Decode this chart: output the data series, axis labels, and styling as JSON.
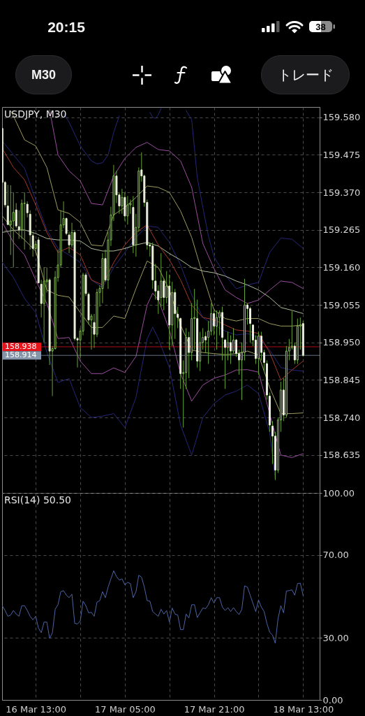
{
  "chart_data": [
    {
      "type": "other",
      "annotations": [
        "20:15",
        "38",
        "M30",
        "トレード"
      ]
    },
    {
      "type": "candlestick",
      "title": "USDJPY, M30",
      "x": [
        "--03-16T07:00",
        "--03-16T07:30",
        "--03-16T08:00",
        "--03-16T08:30",
        "--03-16T09:00",
        "--03-16T09:30",
        "--03-16T10:00",
        "--03-16T10:30",
        "--03-16T11:00",
        "--03-16T11:30",
        "--03-16T12:00",
        "--03-16T12:30",
        "--03-16T13:00",
        "--03-16T13:30",
        "--03-16T14:00",
        "--03-16T14:30",
        "--03-16T15:00",
        "--03-16T15:30",
        "--03-16T16:00",
        "--03-16T16:30",
        "--03-16T17:00",
        "--03-16T17:30",
        "--03-16T18:00",
        "--03-16T18:30",
        "--03-16T19:00",
        "--03-16T19:30",
        "--03-16T20:00",
        "--03-16T20:30",
        "--03-16T21:00",
        "--03-16T21:30",
        "--03-16T22:00",
        "--03-16T22:30",
        "--03-16T23:00",
        "--03-16T23:30",
        "--03-17T00:00",
        "--03-17T00:30",
        "--03-17T01:00",
        "--03-17T01:30",
        "--03-17T02:00",
        "--03-17T02:30",
        "--03-17T03:00",
        "--03-17T03:30",
        "--03-17T04:00",
        "--03-17T04:30",
        "--03-17T05:00",
        "--03-17T05:30",
        "--03-17T06:00",
        "--03-17T06:30",
        "--03-17T07:00",
        "--03-17T07:30",
        "--03-17T08:00",
        "--03-17T08:30",
        "--03-17T09:00",
        "--03-17T09:30",
        "--03-17T10:00",
        "--03-17T10:30",
        "--03-17T11:00",
        "--03-17T11:30",
        "--03-17T12:00",
        "--03-17T12:30",
        "--03-17T13:00",
        "--03-17T13:30",
        "--03-17T14:00",
        "--03-17T14:30",
        "--03-17T15:00",
        "--03-17T15:30",
        "--03-17T16:00",
        "--03-17T16:30",
        "--03-17T17:00",
        "--03-17T17:30",
        "--03-17T18:00",
        "--03-17T18:30",
        "--03-17T19:00",
        "--03-17T19:30",
        "--03-17T20:00",
        "--03-17T20:30",
        "--03-17T21:00",
        "--03-17T21:30",
        "--03-17T22:00",
        "--03-17T22:30",
        "--03-17T23:00",
        "--03-17T23:30",
        "--03-18T00:00",
        "--03-18T00:30",
        "--03-18T01:00",
        "--03-18T01:30",
        "--03-18T02:00",
        "--03-18T02:30",
        "--03-18T03:00",
        "--03-18T03:30",
        "--03-18T04:00",
        "--03-18T04:30",
        "--03-18T05:00",
        "--03-18T05:30",
        "--03-18T06:00",
        "--03-18T06:30",
        "--03-18T07:00",
        "--03-18T07:30",
        "--03-18T08:00",
        "--03-18T08:30",
        "--03-18T09:00",
        "--03-18T09:30",
        "--03-18T10:00",
        "--03-18T10:30",
        "--03-18T11:00",
        "--03-18T11:30",
        "--03-18T12:00",
        "--03-18T12:30",
        "--03-18T13:00"
      ],
      "ohlc": [
        [
          159.549,
          159.552,
          159.394,
          159.398
        ],
        [
          159.398,
          159.402,
          159.328,
          159.335
        ],
        [
          159.332,
          159.391,
          159.279,
          159.28
        ],
        [
          159.279,
          159.39,
          159.195,
          159.29
        ],
        [
          159.29,
          159.37,
          159.16,
          159.314
        ],
        [
          159.321,
          159.34,
          159.27,
          159.276
        ],
        [
          159.274,
          159.32,
          159.24,
          159.265
        ],
        [
          159.266,
          159.35,
          159.24,
          159.339
        ],
        [
          159.339,
          159.37,
          159.21,
          159.34
        ],
        [
          159.337,
          159.345,
          159.3,
          159.313
        ],
        [
          159.309,
          159.32,
          159.21,
          159.251
        ],
        [
          159.249,
          159.26,
          159.19,
          159.213
        ],
        [
          159.213,
          159.235,
          159.2,
          159.225
        ],
        [
          159.237,
          159.245,
          159.115,
          159.117
        ],
        [
          159.113,
          159.125,
          159.02,
          159.059
        ],
        [
          159.059,
          159.16,
          158.95,
          159.122
        ],
        [
          159.12,
          159.16,
          159.09,
          159.125
        ],
        [
          159.125,
          159.13,
          158.887,
          158.926
        ],
        [
          158.926,
          158.94,
          158.8,
          158.933
        ],
        [
          158.933,
          159.15,
          158.93,
          159.132
        ],
        [
          159.132,
          159.21,
          159.12,
          159.167
        ],
        [
          159.167,
          159.32,
          159.16,
          159.279
        ],
        [
          159.279,
          159.345,
          159.27,
          159.297
        ],
        [
          159.297,
          159.3,
          159.25,
          159.255
        ],
        [
          159.251,
          159.26,
          159.2,
          159.223
        ],
        [
          159.223,
          159.285,
          159.215,
          159.258
        ],
        [
          159.258,
          159.265,
          158.955,
          158.961
        ],
        [
          158.961,
          158.965,
          158.88,
          158.957
        ],
        [
          158.957,
          158.99,
          158.905,
          158.982
        ],
        [
          158.982,
          159.145,
          158.97,
          159.139
        ],
        [
          159.139,
          159.145,
          159.08,
          159.087
        ],
        [
          159.085,
          159.09,
          159.0,
          159.013
        ],
        [
          159.013,
          159.03,
          158.93,
          159.024
        ],
        [
          159.006,
          159.03,
          158.935,
          158.973
        ],
        [
          158.973,
          159.1,
          158.965,
          159.09
        ],
        [
          159.09,
          159.11,
          159.05,
          159.101
        ],
        [
          159.101,
          159.2,
          159.06,
          159.185
        ],
        [
          159.185,
          159.21,
          159.12,
          159.125
        ],
        [
          159.125,
          159.26,
          159.1,
          159.237
        ],
        [
          159.237,
          159.33,
          159.22,
          159.307
        ],
        [
          159.307,
          159.447,
          159.29,
          159.416
        ],
        [
          159.416,
          159.43,
          159.34,
          159.363
        ],
        [
          159.363,
          159.37,
          159.31,
          159.332
        ],
        [
          159.332,
          159.38,
          159.31,
          159.356
        ],
        [
          159.356,
          159.37,
          159.29,
          159.304
        ],
        [
          159.304,
          159.36,
          159.28,
          159.335
        ],
        [
          159.335,
          159.35,
          159.31,
          159.339
        ],
        [
          159.328,
          159.36,
          159.2,
          159.223
        ],
        [
          159.223,
          159.31,
          159.19,
          159.272
        ],
        [
          159.272,
          159.44,
          159.26,
          159.43
        ],
        [
          159.433,
          159.482,
          159.4,
          159.416
        ],
        [
          159.416,
          159.42,
          159.33,
          159.342
        ],
        [
          159.342,
          159.35,
          159.21,
          159.223
        ],
        [
          159.223,
          159.23,
          159.19,
          159.22
        ],
        [
          159.22,
          159.23,
          159.1,
          159.125
        ],
        [
          159.122,
          159.17,
          159.07,
          159.094
        ],
        [
          159.094,
          159.11,
          159.03,
          159.069
        ],
        [
          159.076,
          159.2,
          159.05,
          159.122
        ],
        [
          159.122,
          159.13,
          159.04,
          159.076
        ],
        [
          159.076,
          159.15,
          159.06,
          159.108
        ],
        [
          159.108,
          159.14,
          158.93,
          158.999
        ],
        [
          158.999,
          159.12,
          158.94,
          159.09
        ],
        [
          159.09,
          159.1,
          158.96,
          159.031
        ],
        [
          159.029,
          159.05,
          158.99,
          159.02
        ],
        [
          159.017,
          159.02,
          158.82,
          158.863
        ],
        [
          158.863,
          158.9,
          158.712,
          158.866
        ],
        [
          158.866,
          158.99,
          158.82,
          158.964
        ],
        [
          158.964,
          158.98,
          158.85,
          158.922
        ],
        [
          158.922,
          159.06,
          158.9,
          159.017
        ],
        [
          159.017,
          159.1,
          158.93,
          159.02
        ],
        [
          159.017,
          159.07,
          158.88,
          158.898
        ],
        [
          158.898,
          158.98,
          158.87,
          158.95
        ],
        [
          158.95,
          158.99,
          158.93,
          158.964
        ],
        [
          158.967,
          158.98,
          158.92,
          158.957
        ],
        [
          158.964,
          159.01,
          158.89,
          158.982
        ],
        [
          158.982,
          159.06,
          158.97,
          159.031
        ],
        [
          159.031,
          159.04,
          158.97,
          158.996
        ],
        [
          158.996,
          159.04,
          158.93,
          159.02
        ],
        [
          159.02,
          159.04,
          158.97,
          159.034
        ],
        [
          159.034,
          159.05,
          158.9,
          158.964
        ],
        [
          158.957,
          158.96,
          158.82,
          158.936
        ],
        [
          158.936,
          158.98,
          158.9,
          158.95
        ],
        [
          158.95,
          158.97,
          158.89,
          158.926
        ],
        [
          158.926,
          158.99,
          158.92,
          158.957
        ],
        [
          158.957,
          158.96,
          158.91,
          158.919
        ],
        [
          158.919,
          158.93,
          158.86,
          158.901
        ],
        [
          158.901,
          158.95,
          158.789,
          158.922
        ],
        [
          158.922,
          159.128,
          158.9,
          159.055
        ],
        [
          159.055,
          159.06,
          159.0,
          159.045
        ],
        [
          159.045,
          159.05,
          158.95,
          159.003
        ],
        [
          158.999,
          159.0,
          158.94,
          158.957
        ],
        [
          158.957,
          158.97,
          158.89,
          158.905
        ],
        [
          158.905,
          158.98,
          158.86,
          158.968
        ],
        [
          158.968,
          158.98,
          158.9,
          158.922
        ],
        [
          158.922,
          158.93,
          158.87,
          158.894
        ],
        [
          158.891,
          158.9,
          158.79,
          158.803
        ],
        [
          158.8,
          158.81,
          158.7,
          158.719
        ],
        [
          158.716,
          158.73,
          158.61,
          158.688
        ],
        [
          158.688,
          158.7,
          158.565,
          158.593
        ],
        [
          158.593,
          158.74,
          158.585,
          158.733
        ],
        [
          158.733,
          158.84,
          158.7,
          158.817
        ],
        [
          158.817,
          158.85,
          158.73,
          158.747
        ],
        [
          158.747,
          158.94,
          158.74,
          158.926
        ],
        [
          158.926,
          158.96,
          158.9,
          158.936
        ],
        [
          158.936,
          159.038,
          158.93,
          158.94
        ],
        [
          158.94,
          158.95,
          158.89,
          158.901
        ],
        [
          158.901,
          159.017,
          158.89,
          158.996
        ],
        [
          158.996,
          159.02,
          158.93,
          158.999
        ],
        [
          159.003,
          159.01,
          158.91,
          158.914
        ]
      ],
      "series": [
        {
          "type": "line",
          "color": "#26267a",
          "x": [
            "--03-16T18:00",
            "--03-16T19:00",
            "--03-16T21:00",
            "--03-16T23:00",
            "--03-17T00:00",
            "--03-17T01:00",
            "--03-17T02:00",
            "--03-17T03:00",
            "--03-17T04:00",
            "--03-17T05:00",
            "--03-17T09:30",
            "--03-17T10:00",
            "--03-17T10:30",
            "--03-17T11:00",
            "--03-17T11:30",
            "--03-17T13:00",
            "--03-17T16:00",
            "--03-17T17:00",
            "--03-17T18:00",
            "--03-17T19:00",
            "--03-17T20:00",
            "--03-17T21:00",
            "--03-17T23:00",
            "--03-18T01:00",
            "--03-18T03:00",
            "--03-18T05:00",
            "--03-18T07:00",
            "--03-18T09:00",
            "--03-18T11:00",
            "--03-18T13:00"
          ],
          "values": [
            159.591,
            159.566,
            159.5,
            159.458,
            159.45,
            159.453,
            159.475,
            159.538,
            159.584,
            null,
            159.594,
            159.58,
            159.577,
            159.587,
            159.605,
            null,
            159.599,
            159.573,
            159.412,
            159.328,
            159.248,
            159.19,
            159.139,
            159.1,
            159.111,
            159.118,
            159.202,
            159.242,
            159.239,
            159.213
          ]
        },
        {
          "type": "line",
          "color": "#26267a",
          "x": [
            "--03-16T07:00",
            "--03-16T09:00",
            "--03-16T11:00",
            "--03-16T13:00",
            "--03-16T15:00",
            "--03-16T17:00",
            "--03-16T19:00",
            "--03-16T21:00",
            "--03-16T23:00",
            "--03-17T01:00",
            "--03-17T03:00",
            "--03-17T05:00",
            "--03-17T07:00",
            "--03-17T09:00",
            "--03-17T11:00",
            "--03-17T13:00",
            "--03-17T15:00",
            "--03-17T17:00",
            "--03-17T19:00",
            "--03-17T21:00",
            "--03-17T23:00",
            "--03-18T01:00",
            "--03-18T03:00",
            "--03-18T05:00",
            "--03-18T07:00",
            "--03-18T09:00",
            "--03-18T11:00",
            "--03-18T13:00"
          ],
          "values": [
            159.514,
            159.475,
            159.437,
            159.349,
            159.265,
            159.213,
            159.195,
            159.174,
            159.125,
            159.104,
            159.16,
            159.202,
            159.244,
            159.276,
            159.272,
            159.23,
            159.167,
            159.083,
            159.02,
            158.999,
            158.982,
            158.971,
            158.975,
            158.964,
            158.929,
            158.88,
            158.873,
            158.87
          ]
        },
        {
          "type": "line",
          "color": "#26267a",
          "x": [
            "--03-16T07:00",
            "--03-16T09:00",
            "--03-16T11:00",
            "--03-16T13:00",
            "--03-16T15:00",
            "--03-16T17:00",
            "--03-16T19:00",
            "--03-16T21:00",
            "--03-16T23:00",
            "--03-17T01:00",
            "--03-17T03:00",
            "--03-17T05:00",
            "--03-17T07:00",
            "--03-17T09:00",
            "--03-17T10:00",
            "--03-17T11:00",
            "--03-17T13:00",
            "--03-17T15:00",
            "--03-17T17:00",
            "--03-17T19:00",
            "--03-17T21:00",
            "--03-17T23:00",
            "--03-18T01:00",
            "--03-18T03:00",
            "--03-18T05:00",
            "--03-18T07:00",
            "--03-18T07:30",
            "--03-18T08:00"
          ],
          "values": [
            159.174,
            159.132,
            159.073,
            159.034,
            158.922,
            158.838,
            158.849,
            158.768,
            158.74,
            158.744,
            158.751,
            158.712,
            158.796,
            158.96,
            158.993,
            158.961,
            158.88,
            158.719,
            158.635,
            158.74,
            158.779,
            158.803,
            158.814,
            158.831,
            158.807,
            158.698,
            158.635,
            158.568
          ]
        },
        {
          "type": "line",
          "color": "#9a4c9e",
          "x": [
            "--03-16T15:30",
            "--03-16T17:00",
            "--03-16T19:00",
            "--03-16T21:00",
            "--03-16T23:00",
            "--03-17T01:00",
            "--03-17T03:00",
            "--03-17T05:00",
            "--03-17T07:00",
            "--03-17T09:00",
            "--03-17T11:00",
            "--03-17T13:00",
            "--03-17T15:00",
            "--03-17T17:00",
            "--03-17T19:00",
            "--03-17T21:00",
            "--03-17T23:00",
            "--03-18T01:00",
            "--03-18T03:00",
            "--03-18T05:00",
            "--03-18T07:00",
            "--03-18T09:00",
            "--03-18T11:00",
            "--03-18T13:00"
          ],
          "values": [
            159.601,
            159.475,
            159.43,
            159.402,
            159.339,
            159.335,
            159.416,
            159.465,
            159.496,
            159.51,
            159.49,
            159.486,
            159.458,
            159.384,
            159.227,
            159.157,
            159.097,
            159.076,
            159.059,
            159.069,
            159.097,
            159.122,
            159.118,
            159.101
          ]
        },
        {
          "type": "line",
          "color": "#9a4c9e",
          "x": [
            "--03-16T07:00",
            "--03-16T09:00",
            "--03-16T11:00",
            "--03-16T13:00",
            "--03-16T15:00",
            "--03-16T17:00",
            "--03-16T19:00",
            "--03-16T21:00",
            "--03-16T23:00",
            "--03-17T01:00",
            "--03-17T03:00",
            "--03-17T05:00",
            "--03-17T07:00",
            "--03-17T09:00",
            "--03-17T10:00",
            "--03-17T11:00",
            "--03-17T13:00",
            "--03-17T15:00",
            "--03-17T17:00",
            "--03-17T19:00",
            "--03-17T21:00",
            "--03-17T23:00",
            "--03-18T01:00",
            "--03-18T03:00",
            "--03-18T05:00",
            "--03-18T09:00",
            "--03-18T11:00",
            "--03-18T13:00"
          ],
          "values": [
            159.286,
            159.23,
            159.195,
            159.125,
            159.059,
            158.961,
            158.964,
            158.898,
            158.863,
            158.863,
            158.879,
            158.866,
            158.911,
            159.055,
            159.088,
            159.07,
            158.985,
            158.863,
            158.786,
            158.831,
            158.85,
            158.859,
            158.873,
            158.874,
            158.867,
            158.635,
            158.628,
            158.639
          ]
        },
        {
          "type": "line",
          "color": "#9e9c5e",
          "x": [
            "--03-16T08:30",
            "--03-16T09:00",
            "--03-16T11:00",
            "--03-16T13:00",
            "--03-16T15:00",
            "--03-16T17:00",
            "--03-16T19:00",
            "--03-16T21:00",
            "--03-16T23:00",
            "--03-17T01:00",
            "--03-17T03:00",
            "--03-17T05:00",
            "--03-17T07:00",
            "--03-17T09:00",
            "--03-17T11:00",
            "--03-17T13:00",
            "--03-17T15:00",
            "--03-17T17:00",
            "--03-17T19:00",
            "--03-17T21:00",
            "--03-17T23:00",
            "--03-18T01:00",
            "--03-18T03:00",
            "--03-18T05:00",
            "--03-18T07:00",
            "--03-18T09:00",
            "--03-18T11:00",
            "--03-18T13:00"
          ],
          "values": [
            159.598,
            159.584,
            159.517,
            159.5,
            159.44,
            159.321,
            159.311,
            159.286,
            159.223,
            159.22,
            159.307,
            159.328,
            159.356,
            159.388,
            159.384,
            159.37,
            159.318,
            159.244,
            159.139,
            159.041,
            159.017,
            159.01,
            159.017,
            159.017,
            159.003,
            158.996,
            158.996,
            158.999
          ]
        },
        {
          "type": "line",
          "color": "#9e9c5e",
          "x": [
            "--03-16T07:00",
            "--03-16T09:00",
            "--03-16T11:00",
            "--03-16T13:00",
            "--03-16T15:00",
            "--03-16T17:00",
            "--03-16T19:00",
            "--03-16T21:00",
            "--03-16T23:00",
            "--03-17T01:00",
            "--03-17T03:00",
            "--03-17T05:00",
            "--03-17T07:00",
            "--03-17T09:00",
            "--03-17T11:00",
            "--03-17T13:00",
            "--03-17T15:00",
            "--03-17T17:00",
            "--03-17T19:00",
            "--03-17T21:00",
            "--03-17T23:00",
            "--03-18T01:00",
            "--03-18T03:00",
            "--03-18T05:00",
            "--03-18T07:00",
            "--03-18T09:00",
            "--03-18T11:00",
            "--03-18T13:00"
          ],
          "values": [
            159.304,
            159.265,
            159.237,
            159.206,
            159.097,
            159.082,
            159.077,
            159.034,
            158.992,
            158.992,
            159.024,
            159.017,
            159.101,
            159.178,
            159.16,
            159.097,
            158.999,
            158.929,
            158.922,
            158.919,
            158.916,
            158.919,
            158.926,
            158.915,
            158.824,
            158.751,
            158.751,
            158.753
          ]
        },
        {
          "type": "line",
          "color": "#aebc9a",
          "x": [
            "--03-16T07:00",
            "--03-16T09:00",
            "--03-16T11:00",
            "--03-16T13:00",
            "--03-16T15:00",
            "--03-16T17:00",
            "--03-16T19:00",
            "--03-16T21:00",
            "--03-16T23:00",
            "--03-17T01:00",
            "--03-17T03:00",
            "--03-17T05:00",
            "--03-17T07:00",
            "--03-17T09:00",
            "--03-17T11:00",
            "--03-17T13:00",
            "--03-17T15:00",
            "--03-17T17:00",
            "--03-17T19:00",
            "--03-17T21:00",
            "--03-17T23:00",
            "--03-18T01:00",
            "--03-18T03:00",
            "--03-18T05:00",
            "--03-18T07:00",
            "--03-18T09:00",
            "--03-18T11:00",
            "--03-18T13:00"
          ],
          "values": [
            159.258,
            159.264,
            159.265,
            159.255,
            159.241,
            159.237,
            159.237,
            159.234,
            159.213,
            159.206,
            159.206,
            159.213,
            159.223,
            159.23,
            159.22,
            159.199,
            159.181,
            159.16,
            159.15,
            159.145,
            159.136,
            159.122,
            159.111,
            159.097,
            159.076,
            159.048,
            159.04,
            159.031
          ]
        },
        {
          "type": "line",
          "color": "#a3382c",
          "x": [
            "--03-16T07:00",
            "--03-16T09:00",
            "--03-16T11:00",
            "--03-16T13:00",
            "--03-16T15:00",
            "--03-16T17:00",
            "--03-16T19:00",
            "--03-16T21:00",
            "--03-16T23:00",
            "--03-17T01:00",
            "--03-17T03:00",
            "--03-17T05:00",
            "--03-17T07:00",
            "--03-17T09:00",
            "--03-17T11:00",
            "--03-17T13:00",
            "--03-17T15:00",
            "--03-17T17:00",
            "--03-17T19:00",
            "--03-17T21:00",
            "--03-17T23:00",
            "--03-18T01:00",
            "--03-18T03:00",
            "--03-18T05:00",
            "--03-18T07:00",
            "--03-18T09:00",
            "--03-18T11:00",
            "--03-18T13:00"
          ],
          "values": [
            159.493,
            159.44,
            159.405,
            159.335,
            159.258,
            159.202,
            159.216,
            159.195,
            159.125,
            159.111,
            159.174,
            159.223,
            159.258,
            159.279,
            159.223,
            159.181,
            159.125,
            159.055,
            159.02,
            159.014,
            158.999,
            158.985,
            158.982,
            158.975,
            158.922,
            158.845,
            158.873,
            158.898
          ]
        }
      ],
      "xlim": [
        "--03-16T06:58",
        "--03-18T15:58"
      ],
      "xticks": [
        {
          "value": "--03-16T13:00",
          "label": "16 Mar 13:00"
        },
        {
          "value": "--03-16T21:00",
          "label": null
        },
        {
          "value": "--03-17T05:00",
          "label": "17 Mar 05:00"
        },
        {
          "value": "--03-17T13:00",
          "label": null
        },
        {
          "value": "--03-17T21:00",
          "label": "17 Mar 21:00"
        },
        {
          "value": "--03-18T05:00",
          "label": null
        },
        {
          "value": "--03-18T13:00",
          "label": "18 Mar 13:00"
        }
      ],
      "ylim": [
        158.529,
        159.609
      ],
      "yticks": [
        {
          "value": 159.58,
          "label": "159.580"
        },
        159.475,
        {
          "value": 159.37,
          "label": "159.370"
        },
        159.265,
        {
          "value": 159.16,
          "label": "159.160"
        },
        159.055,
        {
          "value": 158.95,
          "label": "158.950"
        },
        158.845,
        {
          "value": 158.74,
          "label": "158.740"
        },
        158.635
      ],
      "ref_lines": [
        {
          "axis": "y",
          "value": 158.938,
          "label": "158.938",
          "color": "#e8141b"
        },
        {
          "axis": "y",
          "value": 158.914,
          "label": "158.914",
          "color": "#8595aa"
        }
      ],
      "grid": true,
      "tick_labels": "y"
    },
    {
      "type": "line",
      "title": "RSI(14) 50.50",
      "color": "#4d64a6",
      "x": [
        "--03-16T07:00",
        "--03-16T07:30",
        "--03-16T08:00",
        "--03-16T08:30",
        "--03-16T09:00",
        "--03-16T09:30",
        "--03-16T10:00",
        "--03-16T10:30",
        "--03-16T11:00",
        "--03-16T11:30",
        "--03-16T12:00",
        "--03-16T12:30",
        "--03-16T13:00",
        "--03-16T13:30",
        "--03-16T14:00",
        "--03-16T14:30",
        "--03-16T15:00",
        "--03-16T15:30",
        "--03-16T16:00",
        "--03-16T16:30",
        "--03-16T17:00",
        "--03-16T17:30",
        "--03-16T18:00",
        "--03-16T18:30",
        "--03-16T19:00",
        "--03-16T19:30",
        "--03-16T20:00",
        "--03-16T20:30",
        "--03-16T21:00",
        "--03-16T21:30",
        "--03-16T22:00",
        "--03-16T22:30",
        "--03-16T23:00",
        "--03-16T23:30",
        "--03-17T00:00",
        "--03-17T00:30",
        "--03-17T01:00",
        "--03-17T01:30",
        "--03-17T02:00",
        "--03-17T02:30",
        "--03-17T03:00",
        "--03-17T03:30",
        "--03-17T04:00",
        "--03-17T04:30",
        "--03-17T05:00",
        "--03-17T05:30",
        "--03-17T06:00",
        "--03-17T06:30",
        "--03-17T07:00",
        "--03-17T07:30",
        "--03-17T08:00",
        "--03-17T08:30",
        "--03-17T09:00",
        "--03-17T09:30",
        "--03-17T10:00",
        "--03-17T10:30",
        "--03-17T11:00",
        "--03-17T11:30",
        "--03-17T12:00",
        "--03-17T12:30",
        "--03-17T13:00",
        "--03-17T13:30",
        "--03-17T14:00",
        "--03-17T14:30",
        "--03-17T15:00",
        "--03-17T15:30",
        "--03-17T16:00",
        "--03-17T16:30",
        "--03-17T17:00",
        "--03-17T17:30",
        "--03-17T18:00",
        "--03-17T18:30",
        "--03-17T19:00",
        "--03-17T19:30",
        "--03-17T20:00",
        "--03-17T20:30",
        "--03-17T21:00",
        "--03-17T21:30",
        "--03-17T22:00",
        "--03-17T22:30",
        "--03-17T23:00",
        "--03-17T23:30",
        "--03-18T00:00",
        "--03-18T00:30",
        "--03-18T01:00",
        "--03-18T01:30",
        "--03-18T02:00",
        "--03-18T02:30",
        "--03-18T03:00",
        "--03-18T03:30",
        "--03-18T04:00",
        "--03-18T04:30",
        "--03-18T05:00",
        "--03-18T05:30",
        "--03-18T06:00",
        "--03-18T06:30",
        "--03-18T07:00",
        "--03-18T07:30",
        "--03-18T08:00",
        "--03-18T08:30",
        "--03-18T09:00",
        "--03-18T09:30",
        "--03-18T10:00",
        "--03-18T10:30",
        "--03-18T11:00",
        "--03-18T11:30",
        "--03-18T12:00",
        "--03-18T12:30",
        "--03-18T13:00"
      ],
      "values": [
        45.5,
        43.2,
        40.4,
        41.0,
        43.2,
        41.5,
        40.4,
        45.5,
        45.5,
        43.2,
        40.4,
        38.7,
        40.4,
        34.7,
        32.5,
        37.6,
        37.6,
        29.7,
        32.5,
        43.8,
        46.0,
        52.3,
        52.8,
        50.6,
        49.4,
        51.1,
        37.0,
        36.7,
        38.1,
        47.7,
        45.5,
        42.1,
        42.3,
        40.4,
        47.2,
        48.0,
        52.3,
        49.4,
        54.5,
        58.5,
        62.4,
        59.6,
        57.9,
        58.5,
        55.6,
        56.8,
        56.2,
        49.4,
        52.3,
        60.2,
        59.3,
        54.5,
        48.0,
        47.7,
        42.7,
        41.5,
        40.4,
        43.8,
        41.5,
        43.2,
        37.6,
        44.4,
        41.5,
        41.0,
        34.0,
        34.0,
        41.5,
        39.6,
        46.0,
        46.0,
        39.8,
        42.1,
        44.4,
        44.1,
        46.0,
        49.4,
        46.8,
        49.4,
        49.4,
        44.9,
        43.2,
        44.6,
        42.7,
        44.6,
        42.7,
        41.2,
        43.8,
        55.1,
        54.5,
        50.6,
        46.6,
        42.7,
        48.3,
        44.9,
        42.7,
        37.0,
        32.7,
        31.4,
        27.4,
        39.3,
        45.5,
        42.1,
        52.6,
        52.8,
        53.2,
        50.6,
        56.2,
        56.4,
        50.5
      ],
      "xlim": [
        "--03-16T06:58",
        "--03-18T15:58"
      ],
      "xticks": [
        {
          "value": "--03-16T13:00",
          "label": "16 Mar 13:00"
        },
        {
          "value": "--03-16T21:00",
          "label": null
        },
        {
          "value": "--03-17T05:00",
          "label": "17 Mar 05:00"
        },
        {
          "value": "--03-17T13:00",
          "label": null
        },
        {
          "value": "--03-17T21:00",
          "label": "17 Mar 21:00"
        },
        {
          "value": "--03-18T05:00",
          "label": null
        },
        {
          "value": "--03-18T13:00",
          "label": "18 Mar 13:00"
        }
      ],
      "ylim": [
        0,
        100
      ],
      "yticks": [
        {
          "value": 100,
          "label": "100.00"
        },
        {
          "value": 70,
          "label": "70.00"
        },
        {
          "value": 30,
          "label": "30.00"
        },
        {
          "value": 0,
          "label": "0.00"
        }
      ],
      "grid": true
    }
  ]
}
